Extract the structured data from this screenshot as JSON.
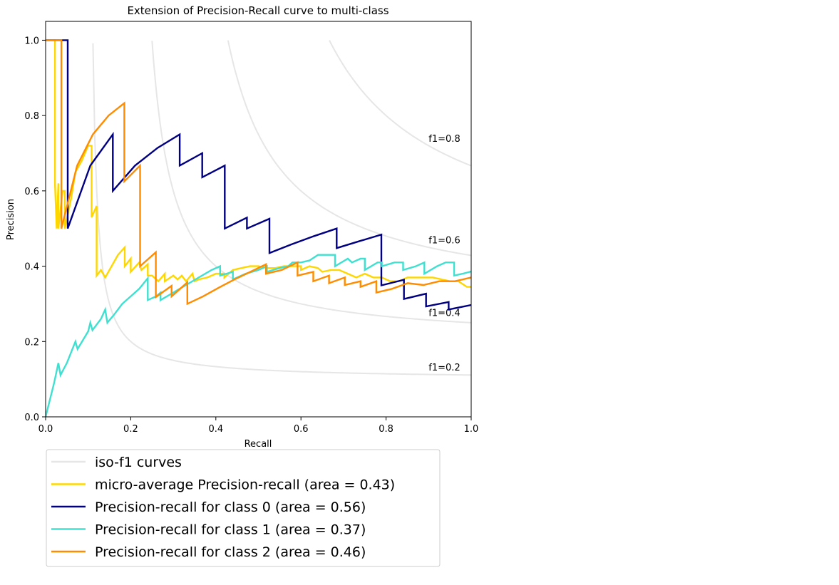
{
  "chart_data": {
    "type": "line",
    "title": "Extension of Precision-Recall curve to multi-class",
    "xlabel": "Recall",
    "ylabel": "Precision",
    "xlim": [
      0.0,
      1.0
    ],
    "ylim": [
      0.0,
      1.05
    ],
    "xticks": [
      0.0,
      0.2,
      0.4,
      0.6,
      0.8,
      1.0
    ],
    "xtick_labels": [
      "0.0",
      "0.2",
      "0.4",
      "0.6",
      "0.8",
      "1.0"
    ],
    "yticks": [
      0.0,
      0.2,
      0.4,
      0.6,
      0.8,
      1.0
    ],
    "ytick_labels": [
      "0.0",
      "0.2",
      "0.4",
      "0.6",
      "0.8",
      "1.0"
    ],
    "grid": false,
    "legend_position": "below",
    "iso_f1": {
      "legend_label": "iso-f1 curves",
      "color": "#e6e6e6",
      "values": [
        0.2,
        0.4,
        0.6,
        0.8
      ],
      "labels": [
        "f1=0.2",
        "f1=0.4",
        "f1=0.6",
        "f1=0.8"
      ]
    },
    "series": [
      {
        "name": "micro-average Precision-recall (area = 0.43)",
        "color": "#ffd700",
        "points": [
          [
            0,
            1.0
          ],
          [
            0.02,
            1.0
          ],
          [
            0.022,
            1.0
          ],
          [
            0.022,
            0.62
          ],
          [
            0.026,
            0.5
          ],
          [
            0.03,
            0.62
          ],
          [
            0.03,
            0.5
          ],
          [
            0.04,
            0.6
          ],
          [
            0.045,
            0.6
          ],
          [
            0.045,
            0.5
          ],
          [
            0.06,
            0.58
          ],
          [
            0.07,
            0.65
          ],
          [
            0.085,
            0.68
          ],
          [
            0.1,
            0.72
          ],
          [
            0.108,
            0.72
          ],
          [
            0.108,
            0.53
          ],
          [
            0.12,
            0.56
          ],
          [
            0.12,
            0.375
          ],
          [
            0.13,
            0.39
          ],
          [
            0.14,
            0.37
          ],
          [
            0.17,
            0.43
          ],
          [
            0.186,
            0.45
          ],
          [
            0.186,
            0.4
          ],
          [
            0.2,
            0.42
          ],
          [
            0.2,
            0.385
          ],
          [
            0.22,
            0.41
          ],
          [
            0.225,
            0.39
          ],
          [
            0.24,
            0.405
          ],
          [
            0.24,
            0.375
          ],
          [
            0.25,
            0.375
          ],
          [
            0.265,
            0.36
          ],
          [
            0.28,
            0.38
          ],
          [
            0.28,
            0.36
          ],
          [
            0.3,
            0.375
          ],
          [
            0.31,
            0.365
          ],
          [
            0.32,
            0.375
          ],
          [
            0.33,
            0.36
          ],
          [
            0.345,
            0.38
          ],
          [
            0.35,
            0.36
          ],
          [
            0.36,
            0.365
          ],
          [
            0.38,
            0.37
          ],
          [
            0.4,
            0.38
          ],
          [
            0.42,
            0.38
          ],
          [
            0.42,
            0.37
          ],
          [
            0.44,
            0.39
          ],
          [
            0.46,
            0.395
          ],
          [
            0.48,
            0.4
          ],
          [
            0.5,
            0.4
          ],
          [
            0.52,
            0.395
          ],
          [
            0.54,
            0.395
          ],
          [
            0.56,
            0.4
          ],
          [
            0.58,
            0.4
          ],
          [
            0.6,
            0.4
          ],
          [
            0.6,
            0.39
          ],
          [
            0.62,
            0.4
          ],
          [
            0.64,
            0.395
          ],
          [
            0.65,
            0.385
          ],
          [
            0.67,
            0.39
          ],
          [
            0.69,
            0.39
          ],
          [
            0.71,
            0.38
          ],
          [
            0.73,
            0.37
          ],
          [
            0.75,
            0.38
          ],
          [
            0.77,
            0.37
          ],
          [
            0.79,
            0.37
          ],
          [
            0.81,
            0.36
          ],
          [
            0.83,
            0.36
          ],
          [
            0.85,
            0.37
          ],
          [
            0.87,
            0.37
          ],
          [
            0.89,
            0.37
          ],
          [
            0.91,
            0.37
          ],
          [
            0.93,
            0.365
          ],
          [
            0.95,
            0.36
          ],
          [
            0.97,
            0.36
          ],
          [
            0.99,
            0.345
          ],
          [
            1.0,
            0.345
          ]
        ]
      },
      {
        "name": "Precision-recall for class 0 (area = 0.56)",
        "color": "#000080",
        "points": [
          [
            0,
            1.0
          ],
          [
            0.052,
            1.0
          ],
          [
            0.052,
            0.5
          ],
          [
            0.105,
            0.667
          ],
          [
            0.158,
            0.75
          ],
          [
            0.158,
            0.6
          ],
          [
            0.21,
            0.667
          ],
          [
            0.263,
            0.714
          ],
          [
            0.315,
            0.75
          ],
          [
            0.315,
            0.667
          ],
          [
            0.368,
            0.7
          ],
          [
            0.368,
            0.636
          ],
          [
            0.421,
            0.667
          ],
          [
            0.421,
            0.5
          ],
          [
            0.473,
            0.529
          ],
          [
            0.473,
            0.5
          ],
          [
            0.526,
            0.526
          ],
          [
            0.526,
            0.435
          ],
          [
            0.578,
            0.458
          ],
          [
            0.631,
            0.48
          ],
          [
            0.684,
            0.5
          ],
          [
            0.684,
            0.448
          ],
          [
            0.736,
            0.466
          ],
          [
            0.789,
            0.484
          ],
          [
            0.789,
            0.349
          ],
          [
            0.842,
            0.364
          ],
          [
            0.842,
            0.313
          ],
          [
            0.894,
            0.327
          ],
          [
            0.894,
            0.293
          ],
          [
            0.947,
            0.305
          ],
          [
            0.947,
            0.285
          ],
          [
            1.0,
            0.297
          ]
        ]
      },
      {
        "name": "Precision-recall for class 1 (area = 0.37)",
        "color": "#40e0d0",
        "points": [
          [
            0,
            0.0
          ],
          [
            0.02,
            0.09
          ],
          [
            0.03,
            0.143
          ],
          [
            0.035,
            0.111
          ],
          [
            0.05,
            0.143
          ],
          [
            0.07,
            0.2
          ],
          [
            0.075,
            0.18
          ],
          [
            0.1,
            0.227
          ],
          [
            0.105,
            0.25
          ],
          [
            0.11,
            0.23
          ],
          [
            0.13,
            0.26
          ],
          [
            0.14,
            0.285
          ],
          [
            0.145,
            0.25
          ],
          [
            0.16,
            0.27
          ],
          [
            0.18,
            0.3
          ],
          [
            0.2,
            0.32
          ],
          [
            0.22,
            0.34
          ],
          [
            0.24,
            0.368
          ],
          [
            0.24,
            0.31
          ],
          [
            0.26,
            0.32
          ],
          [
            0.27,
            0.33
          ],
          [
            0.27,
            0.31
          ],
          [
            0.3,
            0.33
          ],
          [
            0.33,
            0.35
          ],
          [
            0.36,
            0.37
          ],
          [
            0.39,
            0.39
          ],
          [
            0.41,
            0.4
          ],
          [
            0.41,
            0.375
          ],
          [
            0.44,
            0.385
          ],
          [
            0.44,
            0.365
          ],
          [
            0.47,
            0.38
          ],
          [
            0.5,
            0.39
          ],
          [
            0.52,
            0.4
          ],
          [
            0.52,
            0.385
          ],
          [
            0.55,
            0.395
          ],
          [
            0.57,
            0.4
          ],
          [
            0.58,
            0.41
          ],
          [
            0.6,
            0.41
          ],
          [
            0.62,
            0.415
          ],
          [
            0.64,
            0.43
          ],
          [
            0.68,
            0.43
          ],
          [
            0.68,
            0.4
          ],
          [
            0.71,
            0.42
          ],
          [
            0.72,
            0.41
          ],
          [
            0.74,
            0.42
          ],
          [
            0.75,
            0.42
          ],
          [
            0.75,
            0.39
          ],
          [
            0.78,
            0.41
          ],
          [
            0.79,
            0.41
          ],
          [
            0.79,
            0.4
          ],
          [
            0.82,
            0.41
          ],
          [
            0.84,
            0.41
          ],
          [
            0.84,
            0.39
          ],
          [
            0.87,
            0.4
          ],
          [
            0.89,
            0.41
          ],
          [
            0.89,
            0.38
          ],
          [
            0.92,
            0.4
          ],
          [
            0.94,
            0.41
          ],
          [
            0.96,
            0.41
          ],
          [
            0.96,
            0.375
          ],
          [
            0.98,
            0.38
          ],
          [
            1.0,
            0.386
          ]
        ]
      },
      {
        "name": "Precision-recall for class 2 (area = 0.46)",
        "color": "#ff8c00",
        "points": [
          [
            0,
            1.0
          ],
          [
            0.037,
            1.0
          ],
          [
            0.037,
            0.5
          ],
          [
            0.074,
            0.667
          ],
          [
            0.111,
            0.75
          ],
          [
            0.148,
            0.8
          ],
          [
            0.185,
            0.833
          ],
          [
            0.185,
            0.625
          ],
          [
            0.222,
            0.667
          ],
          [
            0.222,
            0.4
          ],
          [
            0.259,
            0.437
          ],
          [
            0.259,
            0.318
          ],
          [
            0.296,
            0.348
          ],
          [
            0.296,
            0.32
          ],
          [
            0.333,
            0.357
          ],
          [
            0.333,
            0.3
          ],
          [
            0.37,
            0.32
          ],
          [
            0.407,
            0.343
          ],
          [
            0.444,
            0.365
          ],
          [
            0.481,
            0.385
          ],
          [
            0.518,
            0.405
          ],
          [
            0.518,
            0.38
          ],
          [
            0.555,
            0.39
          ],
          [
            0.592,
            0.41
          ],
          [
            0.592,
            0.375
          ],
          [
            0.629,
            0.385
          ],
          [
            0.629,
            0.36
          ],
          [
            0.666,
            0.375
          ],
          [
            0.666,
            0.355
          ],
          [
            0.703,
            0.37
          ],
          [
            0.703,
            0.35
          ],
          [
            0.74,
            0.36
          ],
          [
            0.74,
            0.345
          ],
          [
            0.777,
            0.36
          ],
          [
            0.777,
            0.33
          ],
          [
            0.814,
            0.34
          ],
          [
            0.851,
            0.355
          ],
          [
            0.888,
            0.35
          ],
          [
            0.925,
            0.36
          ],
          [
            0.962,
            0.36
          ],
          [
            1.0,
            0.37
          ]
        ]
      }
    ]
  }
}
